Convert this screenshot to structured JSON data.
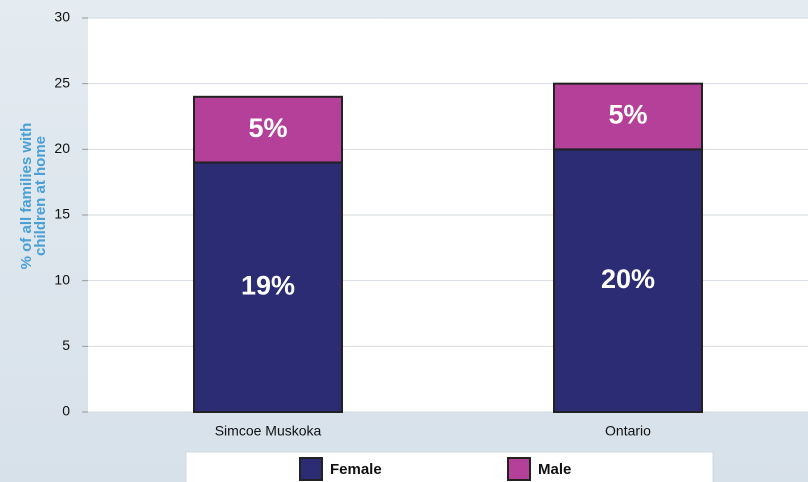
{
  "chart_data": {
    "type": "stacked_bar",
    "ylabel": "% of all families with children at home",
    "categories": [
      "Simcoe Muskoka",
      "Ontario"
    ],
    "series": [
      {
        "name": "Female",
        "color": "#2b2c73",
        "values": [
          19,
          20
        ],
        "value_labels": [
          "19%",
          "20%"
        ]
      },
      {
        "name": "Male",
        "color": "#b5409a",
        "values": [
          5,
          5
        ],
        "value_labels": [
          "5%",
          "5%"
        ]
      }
    ],
    "ylim": [
      0,
      30
    ],
    "yticks": [
      0,
      5,
      10,
      15,
      20,
      25,
      30
    ],
    "grid": true,
    "legend": "bottom"
  }
}
